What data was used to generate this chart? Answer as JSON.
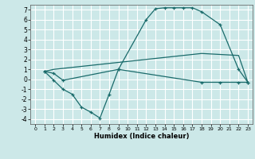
{
  "bg_color": "#cce8e8",
  "grid_color": "#ffffff",
  "line_color": "#1a6b6b",
  "line1_x": [
    1,
    2,
    3,
    9,
    12,
    13,
    14,
    15,
    16,
    17,
    18,
    20,
    22,
    23
  ],
  "line1_y": [
    0.8,
    0.6,
    -0.1,
    1.0,
    6.0,
    7.1,
    7.2,
    7.2,
    7.2,
    7.2,
    6.8,
    5.5,
    1.0,
    -0.3
  ],
  "line2_x": [
    1,
    2,
    3,
    4,
    5,
    6,
    7,
    8,
    9,
    10,
    11,
    12,
    13,
    14,
    15,
    16,
    17,
    18,
    19,
    20,
    21,
    22,
    23
  ],
  "line2_y": [
    0.8,
    1.0,
    1.1,
    1.2,
    1.3,
    1.4,
    1.5,
    1.6,
    1.7,
    1.8,
    1.9,
    2.0,
    2.1,
    2.2,
    2.3,
    2.4,
    2.5,
    2.6,
    2.55,
    2.5,
    2.45,
    2.4,
    -0.3
  ],
  "line3_x": [
    1,
    2,
    3,
    4,
    5,
    6,
    7,
    8,
    9,
    18,
    20,
    22,
    23
  ],
  "line3_y": [
    0.8,
    -0.1,
    -1.0,
    -1.5,
    -2.8,
    -3.3,
    -3.9,
    -1.5,
    1.0,
    -0.3,
    -0.3,
    -0.3,
    -0.3
  ],
  "xlabel": "Humidex (Indice chaleur)",
  "xlim": [
    -0.5,
    23.5
  ],
  "ylim": [
    -4.5,
    7.5
  ],
  "xticks": [
    0,
    1,
    2,
    3,
    4,
    5,
    6,
    7,
    8,
    9,
    10,
    11,
    12,
    13,
    14,
    15,
    16,
    17,
    18,
    19,
    20,
    21,
    22,
    23
  ],
  "yticks": [
    -4,
    -3,
    -2,
    -1,
    0,
    1,
    2,
    3,
    4,
    5,
    6,
    7
  ],
  "figw": 3.2,
  "figh": 2.0,
  "dpi": 100
}
